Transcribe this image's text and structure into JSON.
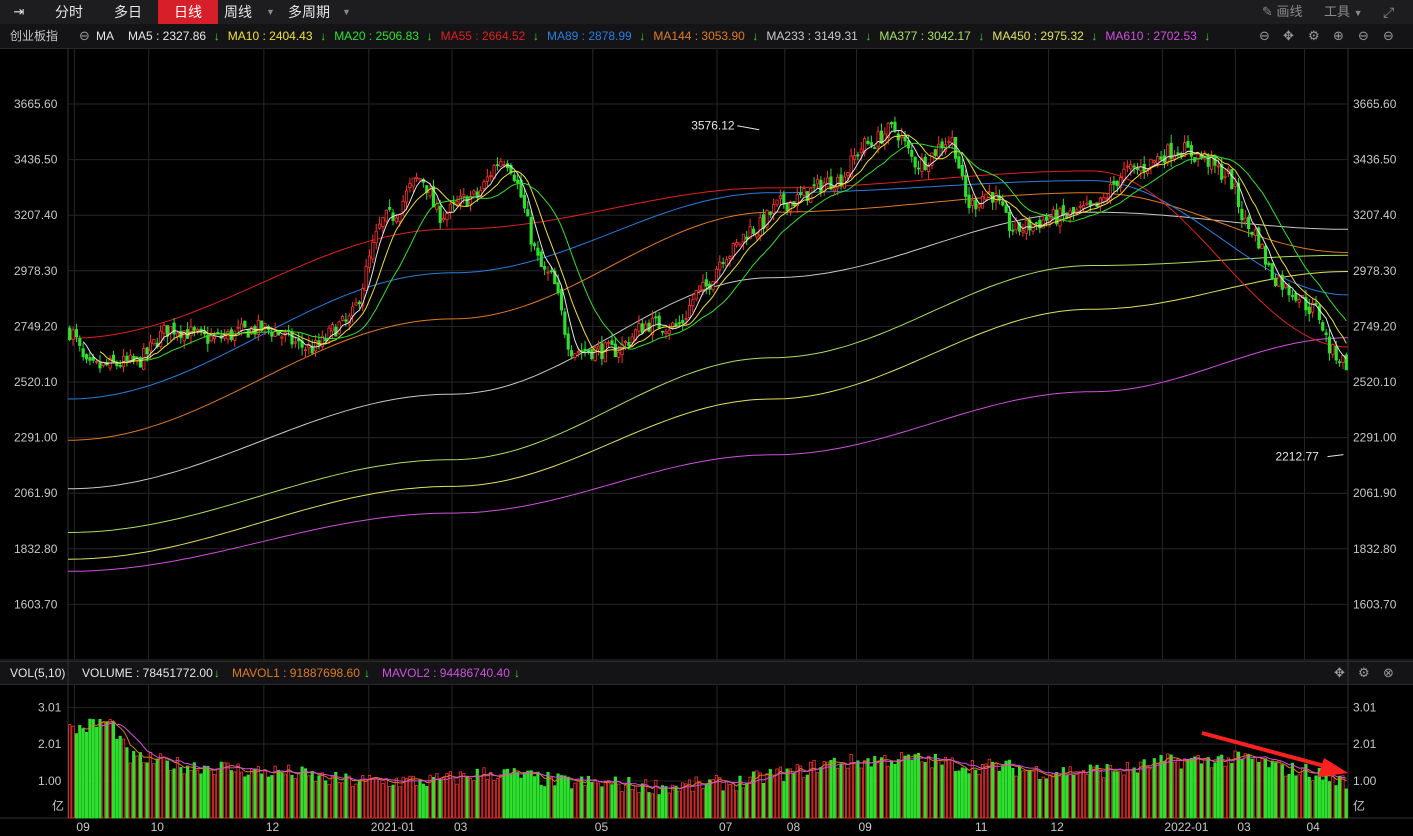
{
  "toolbar": {
    "tabs": [
      "分时",
      "多日",
      "日线",
      "周线",
      "多周期"
    ],
    "active_tab": "日线",
    "draw_label": "画线",
    "tools_label": "工具"
  },
  "ma_bar": {
    "index_name": "创业板指",
    "indicator": "MA",
    "items": [
      {
        "label": "MA5 : 2327.86",
        "color": "#e6e6e6"
      },
      {
        "label": "MA10 : 2404.43",
        "color": "#f0e030"
      },
      {
        "label": "MA20 : 2506.83",
        "color": "#2ee02e"
      },
      {
        "label": "MA55 : 2664.52",
        "color": "#e02020"
      },
      {
        "label": "MA89 : 2878.99",
        "color": "#2a7de0"
      },
      {
        "label": "MA144 : 3053.90",
        "color": "#e07a20"
      },
      {
        "label": "MA233 : 3149.31",
        "color": "#c8c8c8"
      },
      {
        "label": "MA377 : 3042.17",
        "color": "#a8e060"
      },
      {
        "label": "MA450 : 2975.32",
        "color": "#e0e060"
      },
      {
        "label": "MA610 : 2702.53",
        "color": "#d050e0"
      }
    ]
  },
  "vol_bar": {
    "title": "VOL(5,10)",
    "items": [
      {
        "label": "VOLUME : 78451772.00",
        "color": "#e6e6e6"
      },
      {
        "label": "MAVOL1 : 91887698.60",
        "color": "#e07a20"
      },
      {
        "label": "MAVOL2 : 94486740.40",
        "color": "#d050e0"
      }
    ]
  },
  "chart_data": {
    "type": "candlestick",
    "price_axis": {
      "ticks": [
        3665.6,
        3436.5,
        3207.4,
        2978.3,
        2749.2,
        2520.1,
        2291.0,
        2061.9,
        1832.8,
        1603.7
      ],
      "tick_labels": [
        "3665.60",
        "3436.50",
        "3207.40",
        "2978.30",
        "2749.20",
        "2520.10",
        "2291.00",
        "2061.90",
        "1832.80",
        "1603.70"
      ]
    },
    "volume_axis": {
      "ticks": [
        3.01,
        2.01,
        1.0
      ],
      "tick_labels": [
        "3.01",
        "2.01",
        "1.00"
      ],
      "unit": "亿"
    },
    "x_tick_labels": [
      "09",
      "10",
      "12",
      "2021-01",
      "03",
      "05",
      "07",
      "08",
      "09",
      "11",
      "12",
      "2022-01",
      "03",
      "04"
    ],
    "annotations": [
      {
        "text": "3576.12",
        "value": 3576.12,
        "type": "high"
      },
      {
        "text": "2212.77",
        "value": 2212.77,
        "type": "low"
      }
    ],
    "price_keypoints": [
      [
        0,
        2730
      ],
      [
        0.015,
        2580
      ],
      [
        0.05,
        2600
      ],
      [
        0.08,
        2740
      ],
      [
        0.11,
        2700
      ],
      [
        0.15,
        2740
      ],
      [
        0.19,
        2660
      ],
      [
        0.215,
        2760
      ],
      [
        0.25,
        3200
      ],
      [
        0.275,
        3360
      ],
      [
        0.29,
        3210
      ],
      [
        0.315,
        3280
      ],
      [
        0.34,
        3440
      ],
      [
        0.375,
        2960
      ],
      [
        0.395,
        2650
      ],
      [
        0.425,
        2650
      ],
      [
        0.455,
        2760
      ],
      [
        0.475,
        2750
      ],
      [
        0.495,
        2900
      ],
      [
        0.515,
        3050
      ],
      [
        0.535,
        3150
      ],
      [
        0.56,
        3260
      ],
      [
        0.6,
        3350
      ],
      [
        0.625,
        3500
      ],
      [
        0.645,
        3560
      ],
      [
        0.665,
        3420
      ],
      [
        0.69,
        3520
      ],
      [
        0.705,
        3250
      ],
      [
        0.72,
        3300
      ],
      [
        0.74,
        3150
      ],
      [
        0.775,
        3200
      ],
      [
        0.8,
        3230
      ],
      [
        0.83,
        3390
      ],
      [
        0.87,
        3480
      ],
      [
        0.885,
        3450
      ],
      [
        0.905,
        3380
      ],
      [
        0.925,
        3150
      ],
      [
        0.945,
        2950
      ],
      [
        0.955,
        2900
      ],
      [
        0.975,
        2820
      ],
      [
        0.99,
        2640
      ],
      [
        1.0,
        2600
      ]
    ],
    "volume_keypoints": [
      [
        0,
        2.4
      ],
      [
        0.03,
        2.6
      ],
      [
        0.05,
        1.6
      ],
      [
        0.1,
        1.4
      ],
      [
        0.16,
        1.25
      ],
      [
        0.22,
        1.0
      ],
      [
        0.28,
        1.0
      ],
      [
        0.33,
        1.2
      ],
      [
        0.4,
        0.95
      ],
      [
        0.47,
        0.85
      ],
      [
        0.52,
        0.95
      ],
      [
        0.56,
        1.2
      ],
      [
        0.6,
        1.5
      ],
      [
        0.65,
        1.6
      ],
      [
        0.72,
        1.4
      ],
      [
        0.77,
        1.25
      ],
      [
        0.82,
        1.3
      ],
      [
        0.87,
        1.55
      ],
      [
        0.92,
        1.6
      ],
      [
        0.96,
        1.3
      ],
      [
        1.0,
        1.0
      ]
    ],
    "ma_curves": [
      {
        "name": "MA610",
        "color": "#d050e0",
        "points": [
          [
            0,
            1740
          ],
          [
            0.3,
            1980
          ],
          [
            0.55,
            2220
          ],
          [
            0.8,
            2480
          ],
          [
            1.0,
            2702.53
          ]
        ]
      },
      {
        "name": "MA450",
        "color": "#e0e060",
        "points": [
          [
            0,
            1790
          ],
          [
            0.3,
            2090
          ],
          [
            0.55,
            2450
          ],
          [
            0.8,
            2820
          ],
          [
            1.0,
            2975.32
          ]
        ]
      },
      {
        "name": "MA377",
        "color": "#a8e060",
        "points": [
          [
            0,
            1900
          ],
          [
            0.3,
            2200
          ],
          [
            0.55,
            2620
          ],
          [
            0.8,
            3000
          ],
          [
            1.0,
            3042.17
          ]
        ]
      },
      {
        "name": "MA233",
        "color": "#c8c8c8",
        "points": [
          [
            0,
            2080
          ],
          [
            0.3,
            2470
          ],
          [
            0.55,
            2950
          ],
          [
            0.8,
            3220
          ],
          [
            1.0,
            3149.31
          ]
        ]
      },
      {
        "name": "MA144",
        "color": "#e07a20",
        "points": [
          [
            0,
            2280
          ],
          [
            0.3,
            2780
          ],
          [
            0.55,
            3220
          ],
          [
            0.8,
            3300
          ],
          [
            1.0,
            3053.9
          ]
        ]
      },
      {
        "name": "MA89",
        "color": "#2a7de0",
        "points": [
          [
            0,
            2450
          ],
          [
            0.3,
            2970
          ],
          [
            0.55,
            3300
          ],
          [
            0.8,
            3350
          ],
          [
            1.0,
            2878.99
          ]
        ]
      },
      {
        "name": "MA55",
        "color": "#e02020",
        "points": [
          [
            0,
            2700
          ],
          [
            0.3,
            3150
          ],
          [
            0.55,
            3320
          ],
          [
            0.8,
            3390
          ],
          [
            1.0,
            2664.52
          ]
        ]
      }
    ]
  }
}
